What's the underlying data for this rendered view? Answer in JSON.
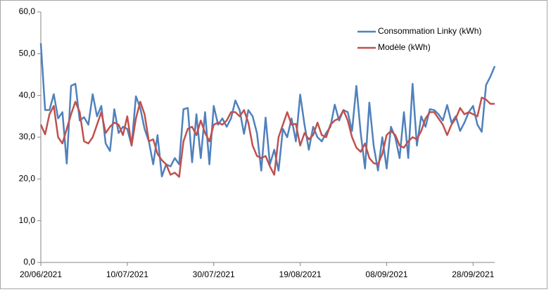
{
  "chart_data": {
    "type": "line",
    "categories": [
      "20/06/2021",
      null,
      null,
      null,
      null,
      null,
      null,
      null,
      null,
      null,
      null,
      null,
      null,
      null,
      null,
      null,
      null,
      null,
      null,
      null,
      "10/07/2021",
      null,
      null,
      null,
      null,
      null,
      null,
      null,
      null,
      null,
      null,
      null,
      null,
      null,
      null,
      null,
      null,
      null,
      null,
      null,
      "30/07/2021",
      null,
      null,
      null,
      null,
      null,
      null,
      null,
      null,
      null,
      null,
      null,
      null,
      null,
      null,
      null,
      null,
      null,
      null,
      null,
      "19/08/2021",
      null,
      null,
      null,
      null,
      null,
      null,
      null,
      null,
      null,
      null,
      null,
      null,
      null,
      null,
      null,
      null,
      null,
      null,
      null,
      "08/09/2021",
      null,
      null,
      null,
      null,
      null,
      null,
      null,
      null,
      null,
      null,
      null,
      null,
      null,
      null,
      null,
      null,
      null,
      null,
      null,
      "28/09/2021",
      null,
      null,
      null,
      null,
      null
    ],
    "series": [
      {
        "name": "Consommation Linky (kWh)",
        "color": "#4f81bd",
        "values": [
          52.5,
          36.5,
          36.5,
          40.3,
          34.5,
          36,
          23.7,
          42.3,
          42.8,
          34,
          34.8,
          33,
          40.3,
          35,
          37.5,
          28.5,
          26.7,
          36.7,
          31,
          32.5,
          32,
          28,
          39.8,
          37,
          32,
          29,
          23.5,
          30.5,
          20.6,
          23.5,
          23,
          25,
          23.5,
          36.7,
          37,
          24,
          35.5,
          25,
          36,
          23.5,
          37.5,
          33,
          34.5,
          32.5,
          34.5,
          38.8,
          36.5,
          30.8,
          36.5,
          35,
          31,
          22,
          34.7,
          23.5,
          27,
          22,
          32,
          30,
          34.5,
          29,
          40.2,
          33,
          27,
          32.5,
          30,
          29,
          31,
          32.5,
          37.8,
          34,
          36.5,
          36,
          31.5,
          42.3,
          31,
          22.5,
          38.3,
          28,
          22,
          30,
          22.5,
          32.5,
          30,
          25,
          36,
          25,
          42.8,
          28,
          35,
          32.5,
          36.7,
          36.5,
          35.5,
          34,
          37.7,
          33.5,
          35,
          31.5,
          33.5,
          36,
          37.5,
          33,
          31.3,
          42.5,
          44.5,
          47
        ]
      },
      {
        "name": "Modèle (kWh)",
        "color": "#c0504d",
        "values": [
          33,
          30.7,
          35.5,
          37.5,
          30,
          28.5,
          32,
          35.5,
          38.5,
          36,
          29,
          28.5,
          30,
          33,
          36,
          31,
          32.5,
          33.5,
          33,
          30.5,
          35,
          28,
          34.5,
          38.5,
          35.5,
          29,
          29.5,
          26,
          24.5,
          23.5,
          21,
          21.5,
          20.5,
          29,
          32,
          32.5,
          30.5,
          34,
          31,
          29,
          33,
          33.5,
          33,
          34,
          36,
          36,
          35,
          36.5,
          33.5,
          28,
          25.5,
          25,
          25.5,
          23,
          21,
          30,
          33,
          36,
          33,
          33.2,
          28,
          31,
          29.5,
          30.5,
          33.5,
          30.5,
          30,
          33,
          34,
          34.5,
          36.5,
          34,
          30,
          27.5,
          26.5,
          28.5,
          25,
          23.8,
          23.5,
          26,
          30.5,
          31.5,
          30.5,
          28,
          27.5,
          29,
          30,
          29.5,
          31.5,
          34.5,
          36,
          36,
          34.5,
          33,
          30.5,
          33,
          34.5,
          37,
          35.5,
          36,
          35.5,
          35,
          39.5,
          39,
          38,
          38
        ]
      }
    ],
    "ylim": [
      0,
      60
    ],
    "yticks": [
      {
        "value": 0,
        "label": "0,0"
      },
      {
        "value": 10,
        "label": "10,0"
      },
      {
        "value": 20,
        "label": "20,0"
      },
      {
        "value": 30,
        "label": "30,0"
      },
      {
        "value": 40,
        "label": "40,0"
      },
      {
        "value": 50,
        "label": "50,0"
      },
      {
        "value": 60,
        "label": "60,0"
      }
    ],
    "grid": false,
    "legend": "upper right"
  }
}
